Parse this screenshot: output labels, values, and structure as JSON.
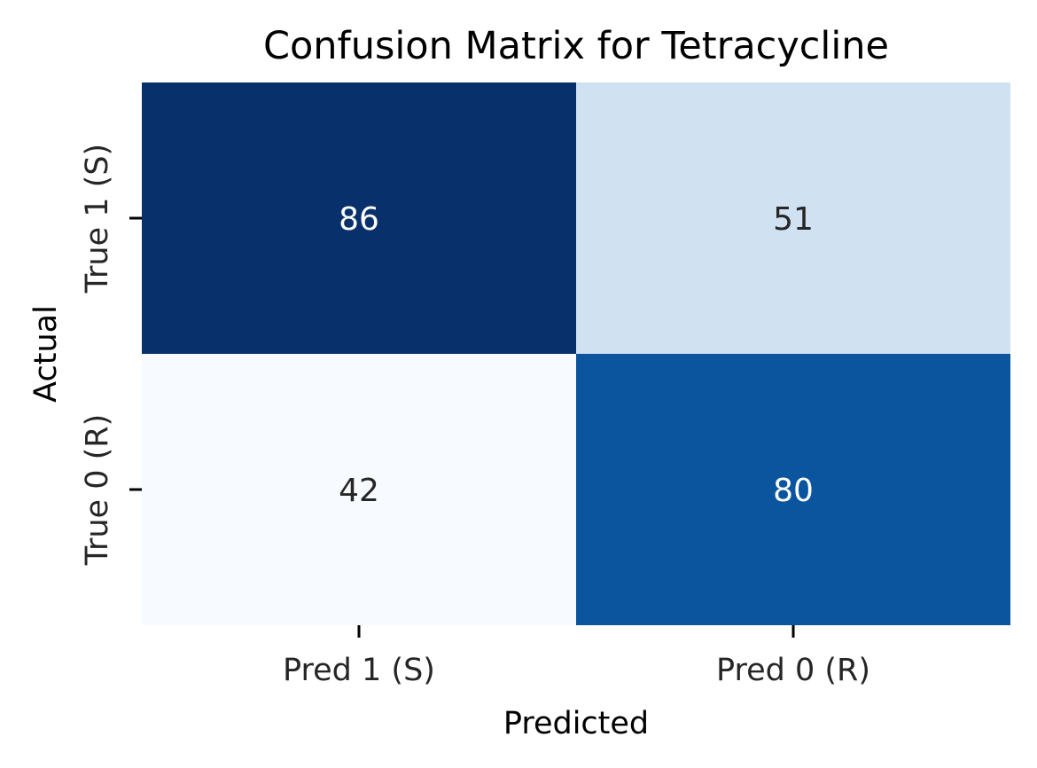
{
  "chart_data": {
    "type": "heatmap",
    "title": "Confusion Matrix for Tetracycline",
    "xlabel": "Predicted",
    "ylabel": "Actual",
    "x_categories": [
      "Pred 1 (S)",
      "Pred 0 (R)"
    ],
    "y_categories": [
      "True 1 (S)",
      "True 0 (R)"
    ],
    "values": [
      [
        86,
        51
      ],
      [
        42,
        80
      ]
    ],
    "colormap": "Blues",
    "colorbar": false,
    "cell_colors": [
      [
        "#08306b",
        "#d0e1f2"
      ],
      [
        "#f7fbff",
        "#0b559f"
      ]
    ],
    "annotation_text_colors": [
      [
        "#ffffff",
        "#262626"
      ],
      [
        "#262626",
        "#ffffff"
      ]
    ]
  }
}
